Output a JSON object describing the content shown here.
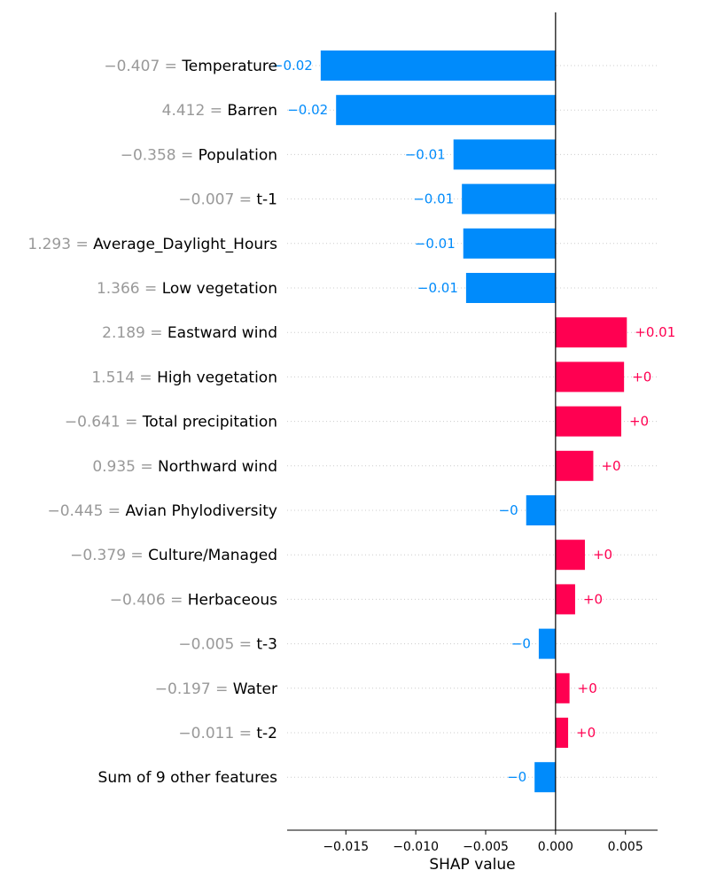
{
  "chart_data": {
    "type": "bar",
    "orientation": "horizontal",
    "xlabel": "SHAP value",
    "xlim": [
      -0.0192,
      0.0073
    ],
    "xticks": [
      -0.015,
      -0.01,
      -0.005,
      0.0,
      0.005
    ],
    "xtick_labels": [
      "−0.015",
      "−0.010",
      "−0.005",
      "0.000",
      "0.005"
    ],
    "grid": "horizontal dotted",
    "colors": {
      "positive": "#ff0051",
      "negative": "#008bfb"
    },
    "rows": [
      {
        "value_text": "−0.407",
        "feature": "Temperature",
        "shap": -0.0168,
        "bar_label": "−0.02"
      },
      {
        "value_text": "4.412",
        "feature": "Barren",
        "shap": -0.0157,
        "bar_label": "−0.02"
      },
      {
        "value_text": "−0.358",
        "feature": "Population",
        "shap": -0.0073,
        "bar_label": "−0.01"
      },
      {
        "value_text": "−0.007",
        "feature": "t-1",
        "shap": -0.0067,
        "bar_label": "−0.01"
      },
      {
        "value_text": "1.293",
        "feature": "Average_Daylight_Hours",
        "shap": -0.0066,
        "bar_label": "−0.01"
      },
      {
        "value_text": "1.366",
        "feature": "Low vegetation",
        "shap": -0.0064,
        "bar_label": "−0.01"
      },
      {
        "value_text": "2.189",
        "feature": "Eastward wind",
        "shap": 0.0051,
        "bar_label": "+0.01"
      },
      {
        "value_text": "1.514",
        "feature": "High vegetation",
        "shap": 0.0049,
        "bar_label": "+0"
      },
      {
        "value_text": "−0.641",
        "feature": "Total precipitation",
        "shap": 0.0047,
        "bar_label": "+0"
      },
      {
        "value_text": "0.935",
        "feature": "Northward wind",
        "shap": 0.0027,
        "bar_label": "+0"
      },
      {
        "value_text": "−0.445",
        "feature": "Avian Phylodiversity",
        "shap": -0.0021,
        "bar_label": "−0"
      },
      {
        "value_text": "−0.379",
        "feature": "Culture/Managed",
        "shap": 0.0021,
        "bar_label": "+0"
      },
      {
        "value_text": "−0.406",
        "feature": "Herbaceous",
        "shap": 0.0014,
        "bar_label": "+0"
      },
      {
        "value_text": "−0.005",
        "feature": "t-3",
        "shap": -0.0012,
        "bar_label": "−0"
      },
      {
        "value_text": "−0.197",
        "feature": "Water",
        "shap": 0.001,
        "bar_label": "+0"
      },
      {
        "value_text": "−0.011",
        "feature": "t-2",
        "shap": 0.0009,
        "bar_label": "+0"
      },
      {
        "value_text": "",
        "feature": "Sum of 9 other features",
        "shap": -0.0015,
        "bar_label": "−0"
      }
    ]
  }
}
